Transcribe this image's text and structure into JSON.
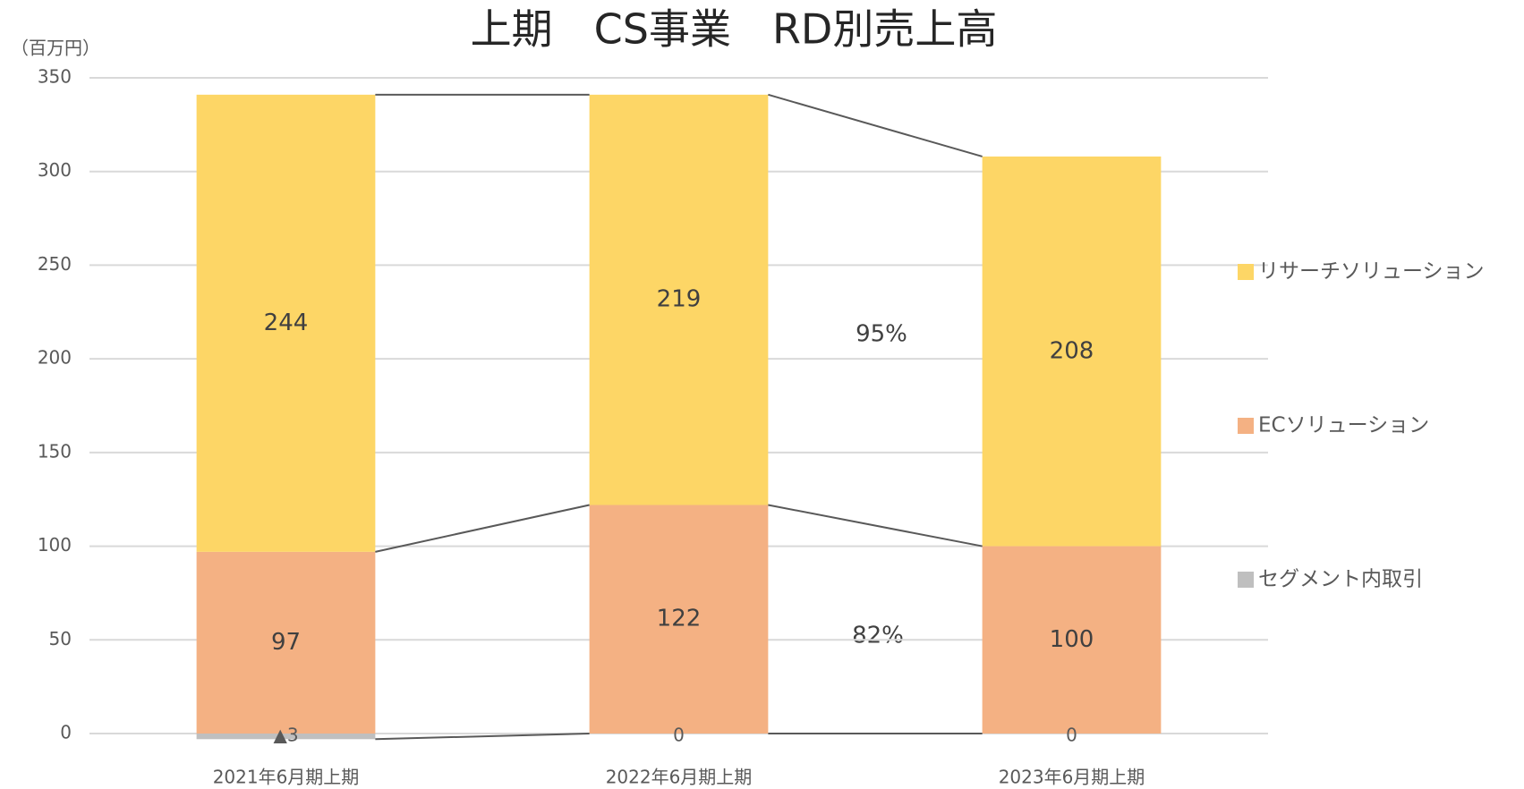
{
  "chart_data": {
    "type": "stacked_bar",
    "title": "上期　CS事業　RD別売上高",
    "y_axis_label": "（百万円）",
    "categories": [
      "2021年6月期上期",
      "2022年6月期上期",
      "2023年6月期上期"
    ],
    "series": [
      {
        "name": "セグメント内取引",
        "color": "#BFBFBF",
        "values": [
          -3,
          0,
          0
        ],
        "value_labels": [
          "▲3",
          "0",
          "0"
        ]
      },
      {
        "name": "ECソリューション",
        "color": "#F4B183",
        "values": [
          97,
          122,
          100
        ]
      },
      {
        "name": "リサーチソリューション",
        "color": "#FDD666",
        "values": [
          244,
          219,
          208
        ]
      }
    ],
    "annotations": [
      "95%",
      "82%"
    ],
    "ylim": [
      0,
      350
    ],
    "yticks": [
      0,
      50,
      100,
      150,
      200,
      250,
      300,
      350
    ],
    "grid": true,
    "legend": "right"
  }
}
